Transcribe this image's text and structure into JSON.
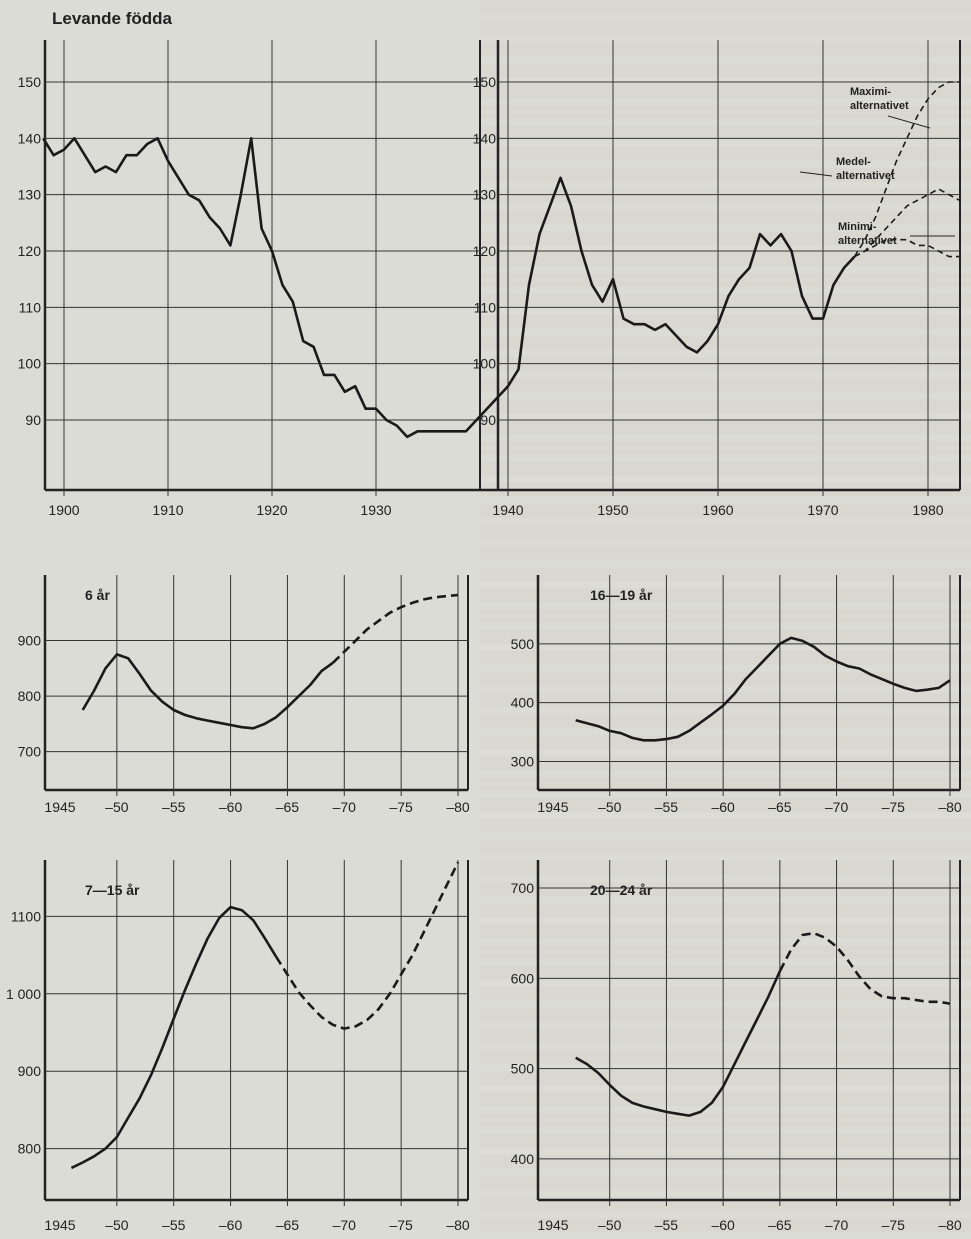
{
  "title": "Levande födda",
  "chart_data": [
    {
      "id": "levande-fodda",
      "type": "line",
      "title": "Levande födda",
      "ylim": [
        85,
        155
      ],
      "xlim": [
        1898,
        1983
      ],
      "yticks": [
        90,
        100,
        110,
        120,
        130,
        140,
        150
      ],
      "xticks": [
        1900,
        1910,
        1920,
        1930,
        1940,
        1950,
        1960,
        1970,
        1980
      ],
      "xticklabels": [
        "1900",
        "1910",
        "1920",
        "1930",
        "1940",
        "1950",
        "1960",
        "1970",
        "1980"
      ],
      "series": [
        {
          "style": "solid",
          "x": [
            1898,
            1899,
            1900,
            1901,
            1902,
            1903,
            1904,
            1905,
            1906,
            1907,
            1908,
            1909,
            1910,
            1911,
            1912,
            1913,
            1914,
            1915,
            1916,
            1917,
            1918,
            1919,
            1920,
            1921,
            1922,
            1923,
            1924,
            1925,
            1926,
            1927,
            1928,
            1929,
            1930,
            1931,
            1932,
            1933,
            1934,
            1935,
            1936,
            1937,
            1938,
            1939,
            1940,
            1941,
            1942,
            1943,
            1944,
            1945,
            1946,
            1947,
            1948,
            1949,
            1950,
            1951,
            1952,
            1953,
            1954,
            1955,
            1956,
            1957,
            1958,
            1959,
            1960,
            1961,
            1962,
            1963,
            1964,
            1965,
            1966,
            1967,
            1968,
            1969,
            1970,
            1971,
            1972,
            1973
          ],
          "y": [
            140,
            137,
            138,
            140,
            137,
            134,
            135,
            134,
            137,
            137,
            139,
            140,
            136,
            133,
            130,
            129,
            126,
            124,
            121,
            130,
            140,
            124,
            120,
            114,
            111,
            104,
            103,
            98,
            98,
            95,
            96,
            92,
            92,
            90,
            89,
            87,
            88,
            88,
            88,
            90,
            92,
            94,
            96,
            99,
            114,
            123,
            128,
            133,
            128,
            120,
            114,
            111,
            115,
            108,
            107,
            107,
            106,
            107,
            105,
            103,
            102,
            104,
            107,
            112,
            115,
            117,
            123,
            121,
            123,
            120,
            112,
            108,
            108,
            114,
            117,
            119
          ]
        },
        {
          "style": "dashed",
          "name": "Maximi-alternativet",
          "x": [
            1973,
            1974,
            1975,
            1976,
            1977,
            1978,
            1979,
            1980,
            1981,
            1982,
            1983
          ],
          "y": [
            119,
            122,
            126,
            131,
            136,
            140,
            144,
            147,
            149,
            150,
            150
          ]
        },
        {
          "style": "dashed",
          "name": "Medel-alternativet",
          "x": [
            1973,
            1974,
            1975,
            1976,
            1977,
            1978,
            1979,
            1980,
            1981,
            1982,
            1983
          ],
          "y": [
            119,
            120,
            122,
            124,
            126,
            128,
            129,
            130,
            131,
            130,
            129
          ]
        },
        {
          "style": "dashed",
          "name": "Minimi-alternativet",
          "x": [
            1973,
            1974,
            1975,
            1976,
            1977,
            1978,
            1979,
            1980,
            1981,
            1982,
            1983
          ],
          "y": [
            119,
            120,
            121,
            122,
            122,
            122,
            121,
            121,
            120,
            119,
            119
          ]
        }
      ],
      "annotations": [
        "Maximi-\nalternativet",
        "Medel-\nalternativet",
        "Minimi-\nalternativet"
      ]
    },
    {
      "id": "age-6",
      "type": "line",
      "title": "6 år",
      "ylim": [
        640,
        1000
      ],
      "xlim": [
        1945,
        1980
      ],
      "yticks": [
        700,
        800,
        900
      ],
      "xticks": [
        1945,
        1950,
        1955,
        1960,
        1965,
        1970,
        1975,
        1980
      ],
      "xticklabels": [
        "1945",
        "–50",
        "–55",
        "–60",
        "–65",
        "–70",
        "–75",
        "–80"
      ],
      "series": [
        {
          "style": "solid",
          "x": [
            1947,
            1948,
            1949,
            1950,
            1951,
            1952,
            1953,
            1954,
            1955,
            1956,
            1957,
            1958,
            1959,
            1960,
            1961,
            1962,
            1963,
            1964,
            1965,
            1966,
            1967,
            1968,
            1969
          ],
          "y": [
            775,
            810,
            850,
            875,
            868,
            840,
            810,
            790,
            775,
            766,
            760,
            756,
            752,
            748,
            744,
            742,
            750,
            762,
            780,
            800,
            820,
            845,
            860
          ]
        },
        {
          "style": "dashed",
          "x": [
            1969,
            1970,
            1971,
            1972,
            1973,
            1974,
            1975,
            1976,
            1977,
            1978,
            1979,
            1980
          ],
          "y": [
            860,
            880,
            900,
            920,
            935,
            950,
            960,
            968,
            974,
            978,
            980,
            982
          ]
        }
      ]
    },
    {
      "id": "age-16-19",
      "type": "line",
      "title": "16—19 år",
      "ylim": [
        260,
        600
      ],
      "xlim": [
        1945,
        1980
      ],
      "yticks": [
        300,
        400,
        500
      ],
      "xticks": [
        1945,
        1950,
        1955,
        1960,
        1965,
        1970,
        1975,
        1980
      ],
      "xticklabels": [
        "1945",
        "–50",
        "–55",
        "–60",
        "–65",
        "–70",
        "–75",
        "–80"
      ],
      "series": [
        {
          "style": "solid",
          "x": [
            1947,
            1948,
            1949,
            1950,
            1951,
            1952,
            1953,
            1954,
            1955,
            1956,
            1957,
            1958,
            1959,
            1960,
            1961,
            1962,
            1963,
            1964,
            1965,
            1966,
            1967,
            1968,
            1969,
            1970,
            1971,
            1972,
            1973,
            1974,
            1975,
            1976,
            1977,
            1978,
            1979,
            1980
          ],
          "y": [
            370,
            365,
            360,
            352,
            348,
            340,
            336,
            336,
            338,
            342,
            352,
            366,
            380,
            395,
            415,
            440,
            460,
            480,
            500,
            510,
            505,
            495,
            480,
            470,
            462,
            458,
            448,
            440,
            432,
            425,
            420,
            422,
            425,
            438
          ]
        }
      ]
    },
    {
      "id": "age-7-15",
      "type": "line",
      "title": "7—15 år",
      "ylim": [
        740,
        1160
      ],
      "xlim": [
        1945,
        1980
      ],
      "yticks": [
        800,
        900,
        1000,
        1100
      ],
      "xticklabels_prefix": "",
      "yticklabels": [
        "800",
        "900",
        "1 000",
        "1100"
      ],
      "xticks": [
        1945,
        1950,
        1955,
        1960,
        1965,
        1970,
        1975,
        1980
      ],
      "xticklabels": [
        "1945",
        "–50",
        "–55",
        "–60",
        "–65",
        "–70",
        "–75",
        "–80"
      ],
      "series": [
        {
          "style": "solid",
          "x": [
            1946,
            1947,
            1948,
            1949,
            1950,
            1951,
            1952,
            1953,
            1954,
            1955,
            1956,
            1957,
            1958,
            1959,
            1960,
            1961,
            1962,
            1963,
            1964
          ],
          "y": [
            775,
            782,
            790,
            800,
            815,
            840,
            865,
            895,
            930,
            968,
            1005,
            1040,
            1072,
            1098,
            1112,
            1108,
            1095,
            1072,
            1048
          ]
        },
        {
          "style": "dashed",
          "x": [
            1964,
            1965,
            1966,
            1967,
            1968,
            1969,
            1970,
            1971,
            1972,
            1973,
            1974,
            1975,
            1976,
            1977,
            1978,
            1979,
            1980
          ],
          "y": [
            1048,
            1025,
            1002,
            985,
            970,
            960,
            955,
            958,
            966,
            980,
            1000,
            1025,
            1050,
            1080,
            1110,
            1140,
            1170
          ]
        }
      ]
    },
    {
      "id": "age-20-24",
      "type": "line",
      "title": "20—24 år",
      "ylim": [
        360,
        720
      ],
      "xlim": [
        1945,
        1980
      ],
      "yticks": [
        400,
        500,
        600,
        700
      ],
      "xticks": [
        1945,
        1950,
        1955,
        1960,
        1965,
        1970,
        1975,
        1980
      ],
      "xticklabels": [
        "1945",
        "–50",
        "–55",
        "–60",
        "–65",
        "–70",
        "–75",
        "–80"
      ],
      "series": [
        {
          "style": "solid",
          "x": [
            1947,
            1948,
            1949,
            1950,
            1951,
            1952,
            1953,
            1954,
            1955,
            1956,
            1957,
            1958,
            1959,
            1960,
            1961,
            1962,
            1963,
            1964,
            1965
          ],
          "y": [
            512,
            505,
            495,
            482,
            470,
            462,
            458,
            455,
            452,
            450,
            448,
            452,
            462,
            480,
            505,
            530,
            555,
            580,
            608
          ]
        },
        {
          "style": "dashed",
          "x": [
            1965,
            1966,
            1967,
            1968,
            1969,
            1970,
            1971,
            1972,
            1973,
            1974,
            1975,
            1976,
            1977,
            1978,
            1979,
            1980
          ],
          "y": [
            608,
            632,
            648,
            650,
            645,
            635,
            620,
            602,
            588,
            580,
            578,
            578,
            576,
            574,
            574,
            572
          ]
        }
      ]
    }
  ]
}
